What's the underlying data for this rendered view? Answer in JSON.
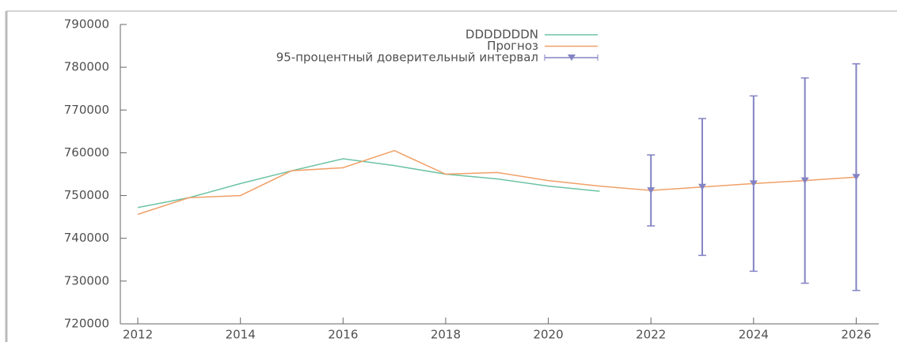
{
  "chart_data": {
    "type": "line",
    "xlim": [
      2011.66,
      2026.44
    ],
    "xticks": [
      2012,
      2014,
      2016,
      2018,
      2020,
      2022,
      2024,
      2026
    ],
    "ylim": [
      720000,
      790000
    ],
    "yticks": [
      720000,
      730000,
      740000,
      750000,
      760000,
      770000,
      780000,
      790000
    ],
    "legend": "top-center",
    "series": [
      {
        "name": "DDDDDDDN",
        "color": "#6cc3a3",
        "x": [
          2012,
          2013,
          2014,
          2015,
          2016,
          2017,
          2018,
          2019,
          2020,
          2021
        ],
        "values": [
          747200,
          749500,
          752800,
          755800,
          758600,
          757000,
          755000,
          753900,
          752200,
          751000
        ]
      },
      {
        "name": "Прогноз",
        "color": "#f0a068",
        "x": [
          2012,
          2013,
          2014,
          2015,
          2016,
          2017,
          2018,
          2019,
          2020,
          2021,
          2022,
          2023,
          2024,
          2025,
          2026
        ],
        "values": [
          745600,
          749500,
          750000,
          755800,
          756500,
          760500,
          755000,
          755400,
          753500,
          752200,
          751200,
          752000,
          752800,
          753500,
          754300
        ]
      },
      {
        "name": "95-процентный доверительный интервал",
        "type": "errorbar",
        "color": "#8383c3",
        "x": [
          2022,
          2023,
          2024,
          2025,
          2026
        ],
        "values": [
          751200,
          752000,
          752800,
          753500,
          754300
        ],
        "errors": [
          8300,
          16000,
          20500,
          24000,
          26500
        ]
      }
    ]
  }
}
